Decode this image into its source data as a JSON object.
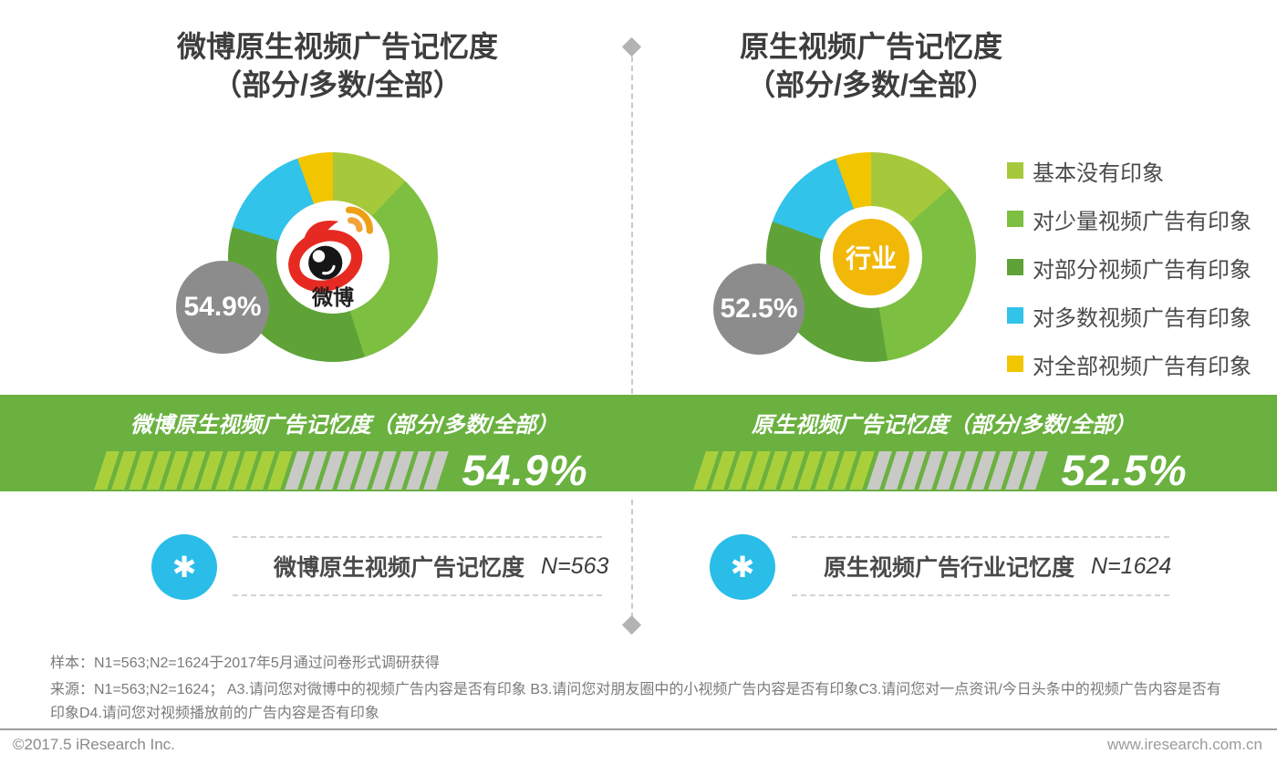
{
  "page": {
    "left": {
      "title_line1": "微博原生视频广告记忆度",
      "title_line2": "（部分/多数/全部）",
      "badge_value": "54.9%",
      "center_label": "微博",
      "banner_title": "微博原生视频广告记忆度（部分/多数/全部）",
      "banner_value": "54.9%",
      "note_label": "微博原生视频广告记忆度",
      "note_n": "N=563"
    },
    "right": {
      "title_line1": "原生视频广告记忆度",
      "title_line2": "（部分/多数/全部）",
      "badge_value": "52.5%",
      "center_label": "行业",
      "banner_title": "原生视频广告记忆度（部分/多数/全部）",
      "banner_value": "52.5%",
      "note_label": "原生视频广告行业记忆度",
      "note_n": "N=1624"
    },
    "legend": [
      {
        "label": "基本没有印象",
        "color": "#a6c93c"
      },
      {
        "label": "对少量视频广告有印象",
        "color": "#7dbf41"
      },
      {
        "label": "对部分视频广告有印象",
        "color": "#5fa338"
      },
      {
        "label": "对多数视频广告有印象",
        "color": "#31c3e9"
      },
      {
        "label": "对全部视频广告有印象",
        "color": "#f2c501"
      }
    ],
    "icons": {
      "asterisk": "✱"
    },
    "colors": {
      "banner_bg": "#6ab13f",
      "badge_bg": "#8c8c8c",
      "note_circle_bg": "#29bde8",
      "center_badge_bg": "#f2b807"
    },
    "footer": {
      "sample_line": "样本：N1=563;N2=1624于2017年5月通过问卷形式调研获得",
      "source_line": "来源：N1=563;N2=1624； A3.请问您对微博中的视频广告内容是否有印象  B3.请问您对朋友圈中的小视频广告内容是否有印象C3.请问您对一点资讯/今日头条中的视频广告内容是否有印象D4.请问您对视频播放前的广告内容是否有印象",
      "copyright": "©2017.5 iResearch Inc.",
      "website": "www.iresearch.com.cn"
    }
  },
  "chart_data": [
    {
      "type": "pie",
      "title": "微博原生视频广告记忆度（部分/多数/全部）",
      "center_label": "微博",
      "categories": [
        "基本没有印象",
        "对少量视频广告有印象",
        "对部分视频广告有印象",
        "对多数视频广告有印象",
        "对全部视频广告有印象"
      ],
      "values": [
        12.1,
        33.0,
        34.5,
        14.9,
        5.5
      ],
      "values_estimated": true,
      "colors": [
        "#a6c93c",
        "#7dbf41",
        "#5fa338",
        "#31c3e9",
        "#f2c501"
      ],
      "combined_highlight": {
        "label": "部分/多数/全部",
        "value": 54.9
      },
      "n": "N=563",
      "legend_position": "right",
      "gauge": {
        "value": 54.9,
        "segments_total": 20,
        "segments_filled": 11,
        "fill_color": "#a9d03b",
        "empty_color": "#c9c9c6"
      }
    },
    {
      "type": "pie",
      "title": "原生视频广告记忆度（部分/多数/全部）",
      "center_label": "行业",
      "categories": [
        "基本没有印象",
        "对少量视频广告有印象",
        "对部分视频广告有印象",
        "对多数视频广告有印象",
        "对全部视频广告有印象"
      ],
      "values": [
        13.5,
        34.0,
        33.0,
        14.0,
        5.5
      ],
      "values_estimated": true,
      "colors": [
        "#a6c93c",
        "#7dbf41",
        "#5fa338",
        "#31c3e9",
        "#f2c501"
      ],
      "combined_highlight": {
        "label": "部分/多数/全部",
        "value": 52.5
      },
      "n": "N=1624",
      "legend_position": "right",
      "gauge": {
        "value": 52.5,
        "segments_total": 20,
        "segments_filled": 10,
        "fill_color": "#a9d03b",
        "empty_color": "#c9c9c6"
      }
    }
  ]
}
